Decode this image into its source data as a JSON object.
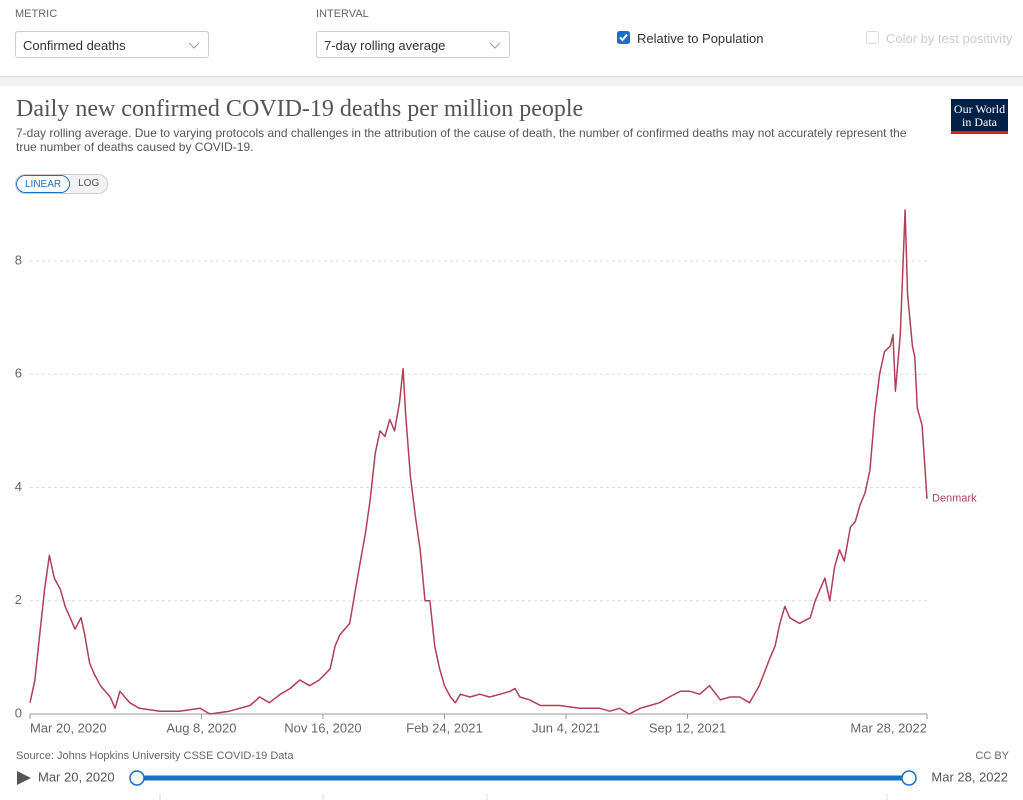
{
  "controls": {
    "metric_label": "METRIC",
    "metric_value": "Confirmed deaths",
    "interval_label": "INTERVAL",
    "interval_value": "7-day rolling average",
    "relative_label": "Relative to Population",
    "relative_checked": true,
    "positivity_label": "Color by test positivity",
    "positivity_checked": false
  },
  "chart_data": {
    "type": "line",
    "title": "Daily new confirmed COVID-19 deaths per million people",
    "subtitle": "7-day rolling average. Due to varying protocols and challenges in the attribution of the cause of death, the number of confirmed deaths may not accurately represent the true number of deaths caused by COVID-19.",
    "logo": [
      "Our World",
      "in Data"
    ],
    "scale_options": [
      "LINEAR",
      "LOG"
    ],
    "log_scale": false,
    "grid": true,
    "source": "Source: Johns Hopkins University CSSE COVID-19 Data",
    "license": "CC BY",
    "timeline": {
      "start": "Mar 20, 2020",
      "end": "Mar 28, 2022"
    },
    "x": [
      "2020-03-20",
      "2020-03-24",
      "2020-03-28",
      "2020-04-01",
      "2020-04-05",
      "2020-04-09",
      "2020-04-14",
      "2020-04-18",
      "2020-04-22",
      "2020-04-26",
      "2020-05-01",
      "2020-05-04",
      "2020-05-08",
      "2020-05-12",
      "2020-05-17",
      "2020-05-25",
      "2020-05-29",
      "2020-06-02",
      "2020-06-06",
      "2020-06-10",
      "2020-06-18",
      "2020-07-05",
      "2020-07-21",
      "2020-08-07",
      "2020-08-15",
      "2020-08-31",
      "2020-09-17",
      "2020-09-25",
      "2020-10-03",
      "2020-10-12",
      "2020-10-20",
      "2020-10-28",
      "2020-11-05",
      "2020-11-13",
      "2020-11-22",
      "2020-11-26",
      "2020-11-30",
      "2020-12-08",
      "2020-12-12",
      "2020-12-16",
      "2020-12-21",
      "2020-12-25",
      "2020-12-29",
      "2021-01-02",
      "2021-01-06",
      "2021-01-10",
      "2021-01-14",
      "2021-01-18",
      "2021-01-21",
      "2021-01-23",
      "2021-01-27",
      "2021-01-31",
      "2021-02-04",
      "2021-02-08",
      "2021-02-12",
      "2021-02-16",
      "2021-02-20",
      "2021-02-24",
      "2021-03-01",
      "2021-03-05",
      "2021-03-09",
      "2021-03-17",
      "2021-03-25",
      "2021-04-02",
      "2021-04-11",
      "2021-04-19",
      "2021-04-23",
      "2021-04-27",
      "2021-05-05",
      "2021-05-14",
      "2021-05-30",
      "2021-06-15",
      "2021-07-02",
      "2021-07-10",
      "2021-07-18",
      "2021-07-26",
      "2021-08-04",
      "2021-08-12",
      "2021-08-20",
      "2021-08-28",
      "2021-09-06",
      "2021-09-14",
      "2021-09-22",
      "2021-09-30",
      "2021-10-09",
      "2021-10-17",
      "2021-10-25",
      "2021-11-02",
      "2021-11-10",
      "2021-11-19",
      "2021-11-23",
      "2021-11-27",
      "2021-12-01",
      "2021-12-05",
      "2021-12-13",
      "2021-12-22",
      "2021-12-26",
      "2021-12-30",
      "2022-01-03",
      "2022-01-07",
      "2022-01-11",
      "2022-01-15",
      "2022-01-19",
      "2022-01-24",
      "2022-01-28",
      "2022-02-01",
      "2022-02-05",
      "2022-02-09",
      "2022-02-13",
      "2022-02-17",
      "2022-02-21",
      "2022-02-26",
      "2022-02-28",
      "2022-03-02",
      "2022-03-06",
      "2022-03-10",
      "2022-03-12",
      "2022-03-16",
      "2022-03-18",
      "2022-03-20",
      "2022-03-24",
      "2022-03-28"
    ],
    "series": [
      {
        "name": "Denmark",
        "color": "#b13f55",
        "values": [
          0.2,
          0.6,
          1.4,
          2.2,
          2.8,
          2.4,
          2.2,
          1.9,
          1.7,
          1.5,
          1.7,
          1.4,
          0.9,
          0.7,
          0.5,
          0.3,
          0.1,
          0.4,
          0.3,
          0.2,
          0.1,
          0.05,
          0.05,
          0.1,
          0.0,
          0.05,
          0.15,
          0.3,
          0.2,
          0.35,
          0.45,
          0.6,
          0.5,
          0.6,
          0.8,
          1.2,
          1.4,
          1.6,
          2.1,
          2.6,
          3.2,
          3.8,
          4.6,
          5.0,
          4.9,
          5.2,
          5.0,
          5.5,
          6.1,
          5.3,
          4.2,
          3.5,
          2.9,
          2.0,
          2.0,
          1.2,
          0.8,
          0.5,
          0.3,
          0.2,
          0.35,
          0.3,
          0.35,
          0.3,
          0.35,
          0.4,
          0.45,
          0.3,
          0.25,
          0.15,
          0.15,
          0.1,
          0.1,
          0.05,
          0.1,
          0.0,
          0.1,
          0.15,
          0.2,
          0.3,
          0.4,
          0.4,
          0.35,
          0.5,
          0.25,
          0.3,
          0.3,
          0.2,
          0.5,
          1.0,
          1.2,
          1.6,
          1.9,
          1.7,
          1.6,
          1.7,
          2.0,
          2.2,
          2.4,
          2.0,
          2.6,
          2.9,
          2.7,
          3.3,
          3.4,
          3.7,
          3.9,
          4.3,
          5.3,
          6.0,
          6.4,
          6.5,
          6.7,
          5.7,
          6.7,
          8.9,
          7.4,
          6.5,
          6.3,
          5.4,
          5.1,
          3.8
        ]
      }
    ],
    "xlim": [
      "2020-03-20",
      "2022-03-28"
    ],
    "xticks": [
      {
        "value": "2020-03-20",
        "label": "Mar 20, 2020"
      },
      {
        "value": "2020-08-08",
        "label": "Aug 8, 2020"
      },
      {
        "value": "2020-11-16",
        "label": "Nov 16, 2020"
      },
      {
        "value": "2021-02-24",
        "label": "Feb 24, 2021"
      },
      {
        "value": "2021-06-04",
        "label": "Jun 4, 2021"
      },
      {
        "value": "2021-09-12",
        "label": "Sep 12, 2021"
      },
      {
        "value": "2022-03-28",
        "label": "Mar 28, 2022"
      }
    ],
    "ylim": [
      0,
      8.9
    ],
    "yticks": [
      0,
      2,
      4,
      6,
      8
    ]
  }
}
